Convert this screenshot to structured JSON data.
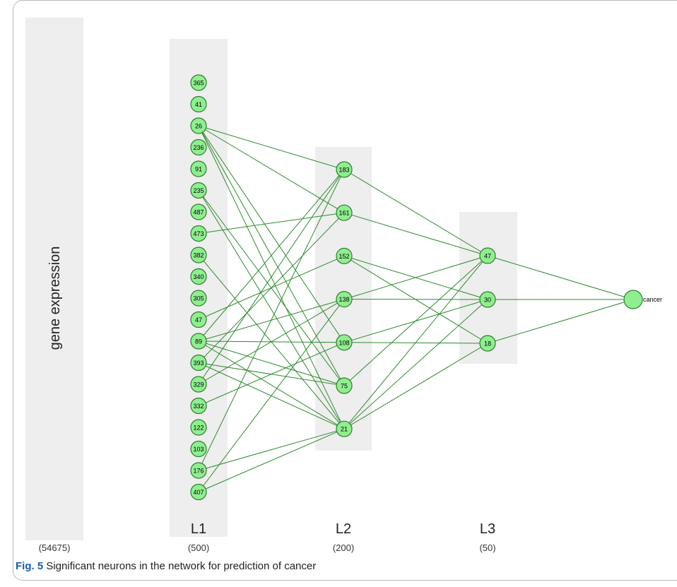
{
  "input_layer": {
    "label": "gene expression",
    "size": "(54675)"
  },
  "layers": [
    {
      "id": "L1",
      "title": "L1",
      "size": "(500)",
      "nodes": [
        "365",
        "41",
        "26",
        "236",
        "91",
        "235",
        "487",
        "473",
        "382",
        "340",
        "305",
        "47",
        "89",
        "393",
        "329",
        "332",
        "122",
        "103",
        "176",
        "407"
      ]
    },
    {
      "id": "L2",
      "title": "L2",
      "size": "(200)",
      "nodes": [
        "183",
        "161",
        "152",
        "138",
        "108",
        "75",
        "21"
      ]
    },
    {
      "id": "L3",
      "title": "L3",
      "size": "(50)",
      "nodes": [
        "47",
        "30",
        "18"
      ]
    }
  ],
  "output": {
    "label": "cancer"
  },
  "edges_l1_l2": [
    [
      "26",
      "183"
    ],
    [
      "26",
      "161"
    ],
    [
      "26",
      "108"
    ],
    [
      "26",
      "75"
    ],
    [
      "26",
      "21"
    ],
    [
      "235",
      "75"
    ],
    [
      "235",
      "21"
    ],
    [
      "473",
      "161"
    ],
    [
      "382",
      "21"
    ],
    [
      "47",
      "152"
    ],
    [
      "89",
      "183"
    ],
    [
      "89",
      "138"
    ],
    [
      "89",
      "108"
    ],
    [
      "89",
      "75"
    ],
    [
      "89",
      "21"
    ],
    [
      "393",
      "161"
    ],
    [
      "393",
      "75"
    ],
    [
      "393",
      "21"
    ],
    [
      "329",
      "183"
    ],
    [
      "329",
      "138"
    ],
    [
      "332",
      "108"
    ],
    [
      "176",
      "183"
    ],
    [
      "176",
      "21"
    ],
    [
      "407",
      "138"
    ],
    [
      "407",
      "21"
    ]
  ],
  "edges_l2_l3": [
    [
      "183",
      "47"
    ],
    [
      "161",
      "47"
    ],
    [
      "152",
      "30"
    ],
    [
      "152",
      "18"
    ],
    [
      "138",
      "47"
    ],
    [
      "138",
      "30"
    ],
    [
      "108",
      "30"
    ],
    [
      "108",
      "18"
    ],
    [
      "75",
      "47"
    ],
    [
      "21",
      "47"
    ],
    [
      "21",
      "30"
    ],
    [
      "21",
      "18"
    ]
  ],
  "edges_l3_out": [
    [
      "47",
      "cancer"
    ],
    [
      "30",
      "cancer"
    ],
    [
      "18",
      "cancer"
    ]
  ],
  "caption": {
    "fig_label": "Fig. 5",
    "text": "Significant neurons in the network for prediction of cancer"
  },
  "colors": {
    "node_fill": "#90ee90",
    "node_stroke": "#2e7d2e",
    "edge": "#2f8a2f",
    "band": "#eeeeee",
    "fig_label": "#1d5aa6"
  }
}
